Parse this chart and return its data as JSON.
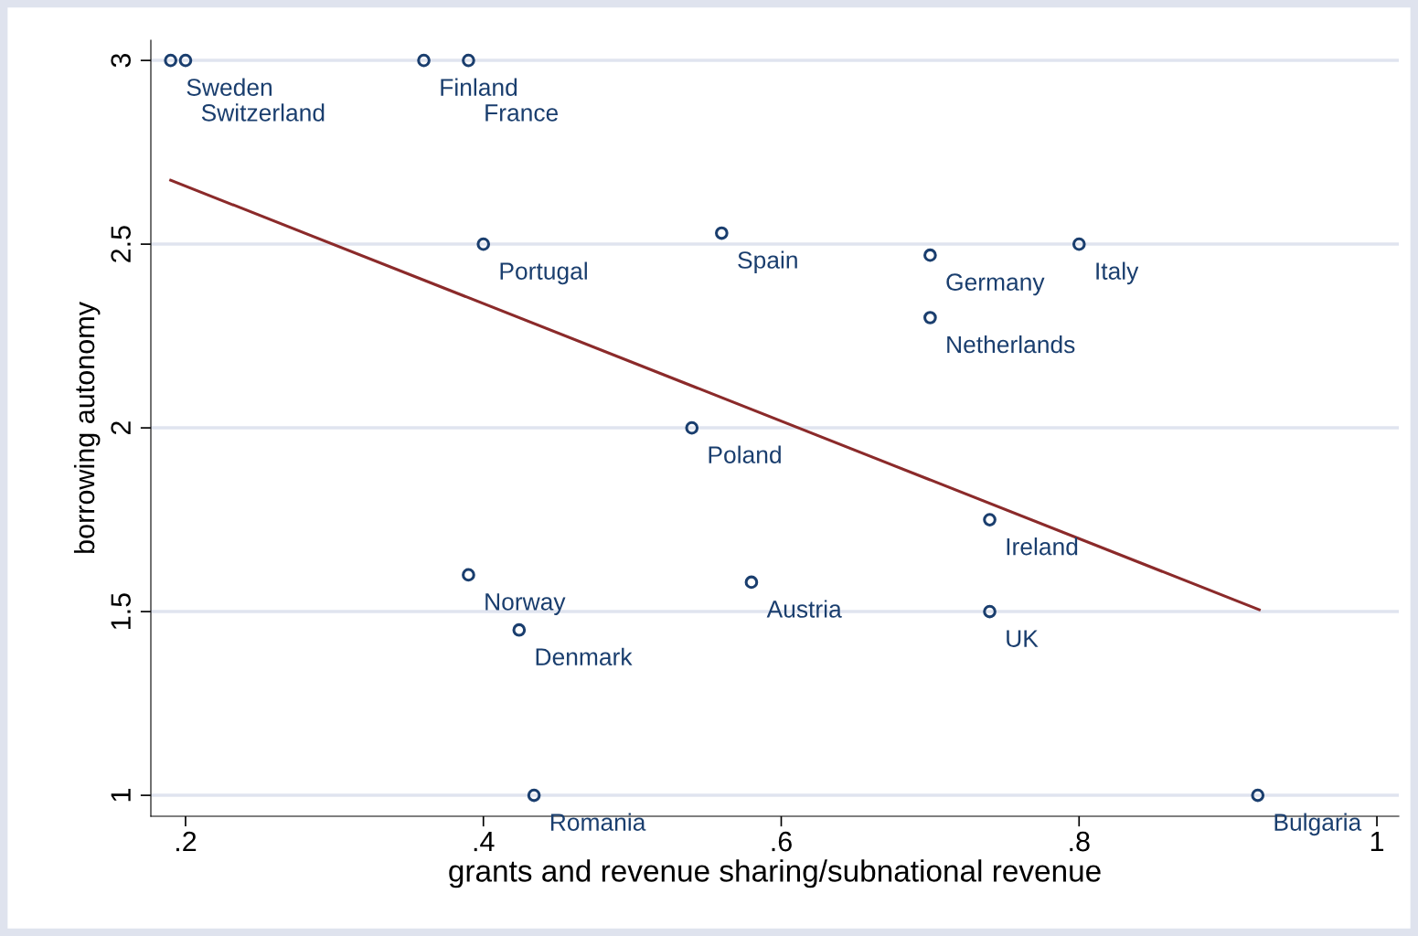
{
  "chart_data": {
    "type": "scatter",
    "xlabel": "grants and revenue sharing/subnational revenue",
    "ylabel": "borrowing autonomy",
    "xlim": [
      0.1767,
      1.0147
    ],
    "ylim": [
      0.943,
      3.055
    ],
    "xticks": [
      {
        "value": 0.2,
        "label": ".2"
      },
      {
        "value": 0.4,
        "label": ".4"
      },
      {
        "value": 0.6,
        "label": ".6"
      },
      {
        "value": 0.8,
        "label": ".8"
      },
      1
    ],
    "yticks": [
      1,
      1.5,
      2,
      2.5,
      3
    ],
    "grid": "y",
    "series": [
      {
        "marker": "circle",
        "color": "#1a3e6e",
        "x": [
          0.19,
          0.2,
          0.36,
          0.39,
          0.4,
          0.56,
          0.7,
          0.8,
          0.7,
          0.54,
          0.74,
          0.39,
          0.58,
          0.74,
          0.424,
          0.434,
          0.92
        ],
        "values": [
          3,
          3,
          3,
          3,
          2.5,
          2.53,
          2.47,
          2.5,
          2.3,
          2,
          1.75,
          1.6,
          1.58,
          1.5,
          1.45,
          1,
          1
        ]
      },
      {
        "type": "line",
        "marker": "none",
        "color": "#8b2a2a",
        "line_style": "solid",
        "x": [
          0.19,
          0.921
        ],
        "values": [
          2.674,
          1.505
        ]
      }
    ],
    "annotations": [
      {
        "text": "Sweden",
        "x": 0.19,
        "y": 3
      },
      {
        "text": "Switzerland",
        "x": 0.2,
        "y": 3
      },
      {
        "text": "Finland",
        "x": 0.36,
        "y": 3
      },
      {
        "text": "France",
        "x": 0.39,
        "y": 3
      },
      {
        "text": "Portugal",
        "x": 0.4,
        "y": 2.5
      },
      {
        "text": "Spain",
        "x": 0.56,
        "y": 2.53
      },
      {
        "text": "Germany",
        "x": 0.7,
        "y": 2.47
      },
      {
        "text": "Italy",
        "x": 0.8,
        "y": 2.5
      },
      {
        "text": "Netherlands",
        "x": 0.7,
        "y": 2.3
      },
      {
        "text": "Poland",
        "x": 0.54,
        "y": 2
      },
      {
        "text": "Ireland",
        "x": 0.74,
        "y": 1.75
      },
      {
        "text": "Norway",
        "x": 0.39,
        "y": 1.6
      },
      {
        "text": "Austria",
        "x": 0.58,
        "y": 1.58
      },
      {
        "text": "UK",
        "x": 0.74,
        "y": 1.5
      },
      {
        "text": "Denmark",
        "x": 0.424,
        "y": 1.45
      },
      {
        "text": "Romania",
        "x": 0.434,
        "y": 1
      },
      {
        "text": "Bulgaria",
        "x": 0.92,
        "y": 1
      }
    ]
  }
}
